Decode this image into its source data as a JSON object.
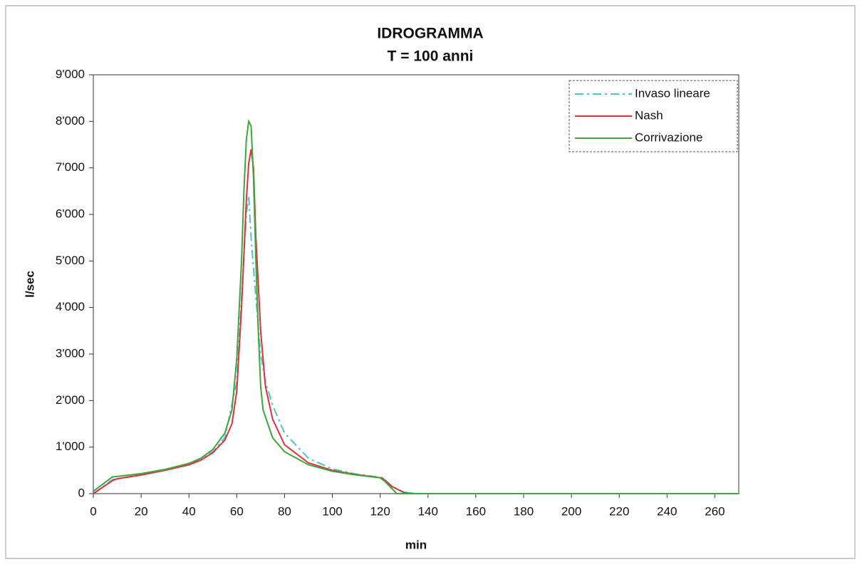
{
  "chart_data": {
    "type": "line",
    "title": "IDROGRAMMA",
    "subtitle": "T = 100 anni",
    "x_label": "min",
    "y_label": "l/sec",
    "xlim": [
      0,
      270
    ],
    "xticks": [
      0,
      20,
      40,
      60,
      80,
      100,
      120,
      140,
      160,
      180,
      200,
      220,
      240,
      260
    ],
    "ylim": [
      0,
      9000
    ],
    "yticks": [
      0,
      {
        "value": 1000,
        "label": "1'000"
      },
      {
        "value": 2000,
        "label": "2'000"
      },
      {
        "value": 3000,
        "label": "3'000"
      },
      {
        "value": 4000,
        "label": "4'000"
      },
      {
        "value": 5000,
        "label": "5'000"
      },
      {
        "value": 6000,
        "label": "6'000"
      },
      {
        "value": 7000,
        "label": "7'000"
      },
      {
        "value": 8000,
        "label": "8'000"
      },
      {
        "value": 9000,
        "label": "9'000"
      }
    ],
    "legend": "upper right",
    "grid": false,
    "series": [
      {
        "name": "Invaso lineare",
        "color": "#4cc3d9",
        "dash": "dashdot",
        "x": [
          0,
          8,
          20,
          30,
          40,
          50,
          55,
          60,
          62,
          64,
          65,
          66,
          68,
          70,
          72,
          75,
          80,
          90,
          100,
          110,
          120,
          121,
          125,
          130,
          135,
          270
        ],
        "values": [
          0,
          300,
          410,
          510,
          630,
          900,
          1200,
          2400,
          4200,
          6000,
          6400,
          5500,
          4200,
          3000,
          2400,
          1900,
          1300,
          760,
          530,
          420,
          350,
          340,
          160,
          30,
          0,
          0
        ]
      },
      {
        "name": "Nash",
        "color": "#e0303a",
        "dash": "solid",
        "x": [
          0,
          8,
          10,
          20,
          30,
          40,
          45,
          50,
          55,
          58,
          60,
          62,
          64,
          65,
          66,
          67,
          68,
          70,
          72,
          75,
          80,
          90,
          100,
          110,
          120,
          121,
          125,
          130,
          135,
          270
        ],
        "values": [
          0,
          280,
          320,
          400,
          500,
          620,
          720,
          880,
          1150,
          1500,
          2200,
          4000,
          6300,
          7100,
          7400,
          7000,
          5500,
          3500,
          2300,
          1600,
          1050,
          660,
          500,
          410,
          340,
          330,
          150,
          20,
          0,
          0
        ]
      },
      {
        "name": "Corrivazione",
        "color": "#3aa83a",
        "dash": "solid",
        "x": [
          0,
          8,
          10,
          20,
          30,
          40,
          45,
          50,
          55,
          58,
          60,
          62,
          63,
          64,
          65,
          66,
          67,
          68,
          69,
          70,
          71,
          75,
          80,
          90,
          100,
          110,
          120,
          122,
          127,
          130,
          270
        ],
        "values": [
          50,
          360,
          370,
          430,
          520,
          650,
          760,
          950,
          1300,
          1800,
          2900,
          5000,
          6500,
          7600,
          8000,
          7900,
          6800,
          5000,
          3500,
          2300,
          1800,
          1200,
          900,
          620,
          480,
          400,
          340,
          260,
          0,
          0,
          0
        ]
      }
    ]
  }
}
